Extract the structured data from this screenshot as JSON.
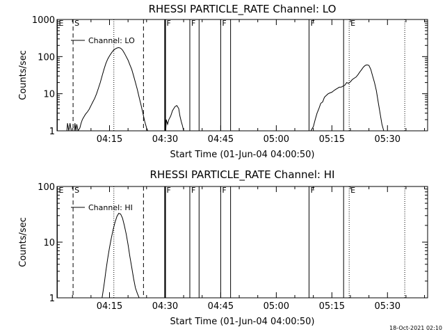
{
  "timestamp": "18-Oct-2021 02:10",
  "chart_data": [
    {
      "type": "line",
      "title": "RHESSI PARTICLE_RATE Channel: LO",
      "xlabel": "Start Time (01-Jun-04 04:00:50)",
      "ylabel": "Counts/sec",
      "y_scale": "log",
      "ylim": [
        1,
        1000
      ],
      "xlim": [
        "04:00:50",
        "05:40:50"
      ],
      "x_ticks": [
        "04:15",
        "04:30",
        "04:45",
        "05:00",
        "05:15",
        "05:30"
      ],
      "y_ticks": [
        "1",
        "10",
        "100",
        "1000"
      ],
      "legend": "top-left",
      "series": [
        {
          "name": "Channel: LO",
          "points": [
            [
              "04:03:30",
              1
            ],
            [
              "04:03:40",
              1.6
            ],
            [
              "04:04:00",
              1
            ],
            [
              "04:04:20",
              1.6
            ],
            [
              "04:04:40",
              1
            ],
            [
              "04:05:30",
              1
            ],
            [
              "04:05:40",
              1.6
            ],
            [
              "04:05:55",
              1
            ],
            [
              "04:06:10",
              1.5
            ],
            [
              "04:06:30",
              1
            ],
            [
              "04:07:00",
              1.2
            ],
            [
              "04:07:20",
              1.6
            ],
            [
              "04:07:40",
              2
            ],
            [
              "04:08:00",
              2.3
            ],
            [
              "04:08:30",
              2.8
            ],
            [
              "04:09:00",
              3.2
            ],
            [
              "04:09:30",
              3.8
            ],
            [
              "04:10:00",
              4.8
            ],
            [
              "04:10:30",
              6
            ],
            [
              "04:11:00",
              7.5
            ],
            [
              "04:11:30",
              10
            ],
            [
              "04:12:00",
              14
            ],
            [
              "04:12:30",
              20
            ],
            [
              "04:13:00",
              30
            ],
            [
              "04:13:30",
              45
            ],
            [
              "04:14:00",
              65
            ],
            [
              "04:14:30",
              85
            ],
            [
              "04:15:00",
              105
            ],
            [
              "04:15:30",
              125
            ],
            [
              "04:16:00",
              145
            ],
            [
              "04:16:30",
              160
            ],
            [
              "04:17:00",
              170
            ],
            [
              "04:17:30",
              175
            ],
            [
              "04:18:00",
              168
            ],
            [
              "04:18:30",
              150
            ],
            [
              "04:19:00",
              125
            ],
            [
              "04:19:30",
              100
            ],
            [
              "04:20:00",
              80
            ],
            [
              "04:20:30",
              60
            ],
            [
              "04:21:00",
              45
            ],
            [
              "04:21:30",
              30
            ],
            [
              "04:22:00",
              20
            ],
            [
              "04:22:30",
              13
            ],
            [
              "04:23:00",
              8
            ],
            [
              "04:23:30",
              5
            ],
            [
              "04:24:00",
              3
            ],
            [
              "04:24:30",
              1.8
            ],
            [
              "04:25:00",
              1.2
            ],
            [
              "04:25:20",
              1
            ]
          ]
        },
        {
          "name": "Channel: LO",
          "points": [
            [
              "04:30:10",
              1
            ],
            [
              "04:30:20",
              2
            ],
            [
              "04:30:40",
              1.5
            ],
            [
              "04:31:00",
              2
            ],
            [
              "04:31:30",
              2.5
            ],
            [
              "04:32:00",
              3.5
            ],
            [
              "04:32:40",
              4.5
            ],
            [
              "04:33:10",
              4.8
            ],
            [
              "04:33:40",
              4
            ],
            [
              "04:34:00",
              2.5
            ],
            [
              "04:34:20",
              1.8
            ],
            [
              "04:34:40",
              1.4
            ],
            [
              "04:35:00",
              1
            ]
          ]
        },
        {
          "name": "Channel: LO",
          "points": [
            [
              "05:09:20",
              1
            ],
            [
              "05:10:00",
              1.3
            ],
            [
              "05:10:30",
              2
            ],
            [
              "05:11:00",
              3
            ],
            [
              "05:11:30",
              4
            ],
            [
              "05:12:00",
              5.5
            ],
            [
              "05:12:30",
              6
            ],
            [
              "05:13:00",
              8
            ],
            [
              "05:13:30",
              9
            ],
            [
              "05:14:00",
              10
            ],
            [
              "05:14:30",
              10.5
            ],
            [
              "05:15:00",
              11
            ],
            [
              "05:15:30",
              12
            ],
            [
              "05:16:00",
              13
            ],
            [
              "05:16:30",
              14
            ],
            [
              "05:17:00",
              15
            ],
            [
              "05:17:30",
              15
            ],
            [
              "05:18:00",
              16
            ],
            [
              "05:18:30",
              17
            ],
            [
              "05:19:00",
              20
            ],
            [
              "05:19:30",
              19
            ],
            [
              "05:20:00",
              21
            ],
            [
              "05:20:30",
              24
            ],
            [
              "05:21:00",
              26
            ],
            [
              "05:21:30",
              28
            ],
            [
              "05:22:00",
              32
            ],
            [
              "05:22:30",
              38
            ],
            [
              "05:23:00",
              44
            ],
            [
              "05:23:30",
              52
            ],
            [
              "05:24:00",
              58
            ],
            [
              "05:24:30",
              60
            ],
            [
              "05:25:00",
              58
            ],
            [
              "05:25:30",
              45
            ],
            [
              "05:26:00",
              30
            ],
            [
              "05:26:30",
              20
            ],
            [
              "05:27:00",
              12
            ],
            [
              "05:27:30",
              6
            ],
            [
              "05:28:00",
              3
            ],
            [
              "05:28:30",
              1.5
            ],
            [
              "05:29:00",
              1
            ]
          ]
        }
      ],
      "annotations": [
        {
          "label": "E",
          "time": "04:00:55",
          "style": "solid"
        },
        {
          "label": "S",
          "time": "04:05:10",
          "style": "dashed"
        },
        {
          "label": "",
          "time": "04:16:10",
          "style": "dotted"
        },
        {
          "label": "",
          "time": "04:24:10",
          "style": "dashed"
        },
        {
          "label": "F",
          "time": "04:30:00",
          "style": "thick"
        },
        {
          "label": "F",
          "time": "04:36:40",
          "style": "solid"
        },
        {
          "label": "",
          "time": "04:39:10",
          "style": "solid"
        },
        {
          "label": "F",
          "time": "04:45:00",
          "style": "solid"
        },
        {
          "label": "",
          "time": "04:47:40",
          "style": "solid"
        },
        {
          "label": "F",
          "time": "05:08:50",
          "style": "solid"
        },
        {
          "label": "",
          "time": "05:18:10",
          "style": "solid"
        },
        {
          "label": "E",
          "time": "05:19:40",
          "style": "dotted"
        },
        {
          "label": "",
          "time": "05:34:40",
          "style": "dotted"
        }
      ]
    },
    {
      "type": "line",
      "title": "RHESSI PARTICLE_RATE Channel: HI",
      "xlabel": "Start Time (01-Jun-04 04:00:50)",
      "ylabel": "Counts/sec",
      "y_scale": "log",
      "ylim": [
        1,
        100
      ],
      "xlim": [
        "04:00:50",
        "05:40:50"
      ],
      "x_ticks": [
        "04:15",
        "04:30",
        "04:45",
        "05:00",
        "05:15",
        "05:30"
      ],
      "y_ticks": [
        "1",
        "10",
        "100"
      ],
      "legend": "top-left",
      "series": [
        {
          "name": "Channel: HI",
          "points": [
            [
              "04:13:00",
              1
            ],
            [
              "04:13:20",
              1.4
            ],
            [
              "04:13:40",
              2
            ],
            [
              "04:14:00",
              3
            ],
            [
              "04:14:30",
              5
            ],
            [
              "04:15:00",
              8
            ],
            [
              "04:15:30",
              12
            ],
            [
              "04:16:00",
              17
            ],
            [
              "04:16:30",
              23
            ],
            [
              "04:17:00",
              29
            ],
            [
              "04:17:30",
              33
            ],
            [
              "04:18:00",
              32
            ],
            [
              "04:18:30",
              27
            ],
            [
              "04:19:00",
              20
            ],
            [
              "04:19:30",
              14
            ],
            [
              "04:20:00",
              9
            ],
            [
              "04:20:30",
              5.5
            ],
            [
              "04:21:00",
              3.5
            ],
            [
              "04:21:30",
              2.2
            ],
            [
              "04:22:00",
              1.5
            ],
            [
              "04:22:30",
              1.2
            ],
            [
              "04:23:00",
              1
            ]
          ]
        }
      ],
      "annotations": [
        {
          "label": "E",
          "time": "04:00:55",
          "style": "solid"
        },
        {
          "label": "S",
          "time": "04:05:10",
          "style": "dashed"
        },
        {
          "label": "",
          "time": "04:16:10",
          "style": "dotted"
        },
        {
          "label": "",
          "time": "04:24:10",
          "style": "dashed"
        },
        {
          "label": "F",
          "time": "04:30:00",
          "style": "thick"
        },
        {
          "label": "F",
          "time": "04:36:40",
          "style": "solid"
        },
        {
          "label": "",
          "time": "04:39:10",
          "style": "solid"
        },
        {
          "label": "F",
          "time": "04:45:00",
          "style": "solid"
        },
        {
          "label": "",
          "time": "04:47:40",
          "style": "solid"
        },
        {
          "label": "F",
          "time": "05:08:50",
          "style": "solid"
        },
        {
          "label": "",
          "time": "05:18:10",
          "style": "solid"
        },
        {
          "label": "E",
          "time": "05:19:40",
          "style": "dotted"
        },
        {
          "label": "",
          "time": "05:34:40",
          "style": "dotted"
        }
      ]
    }
  ]
}
